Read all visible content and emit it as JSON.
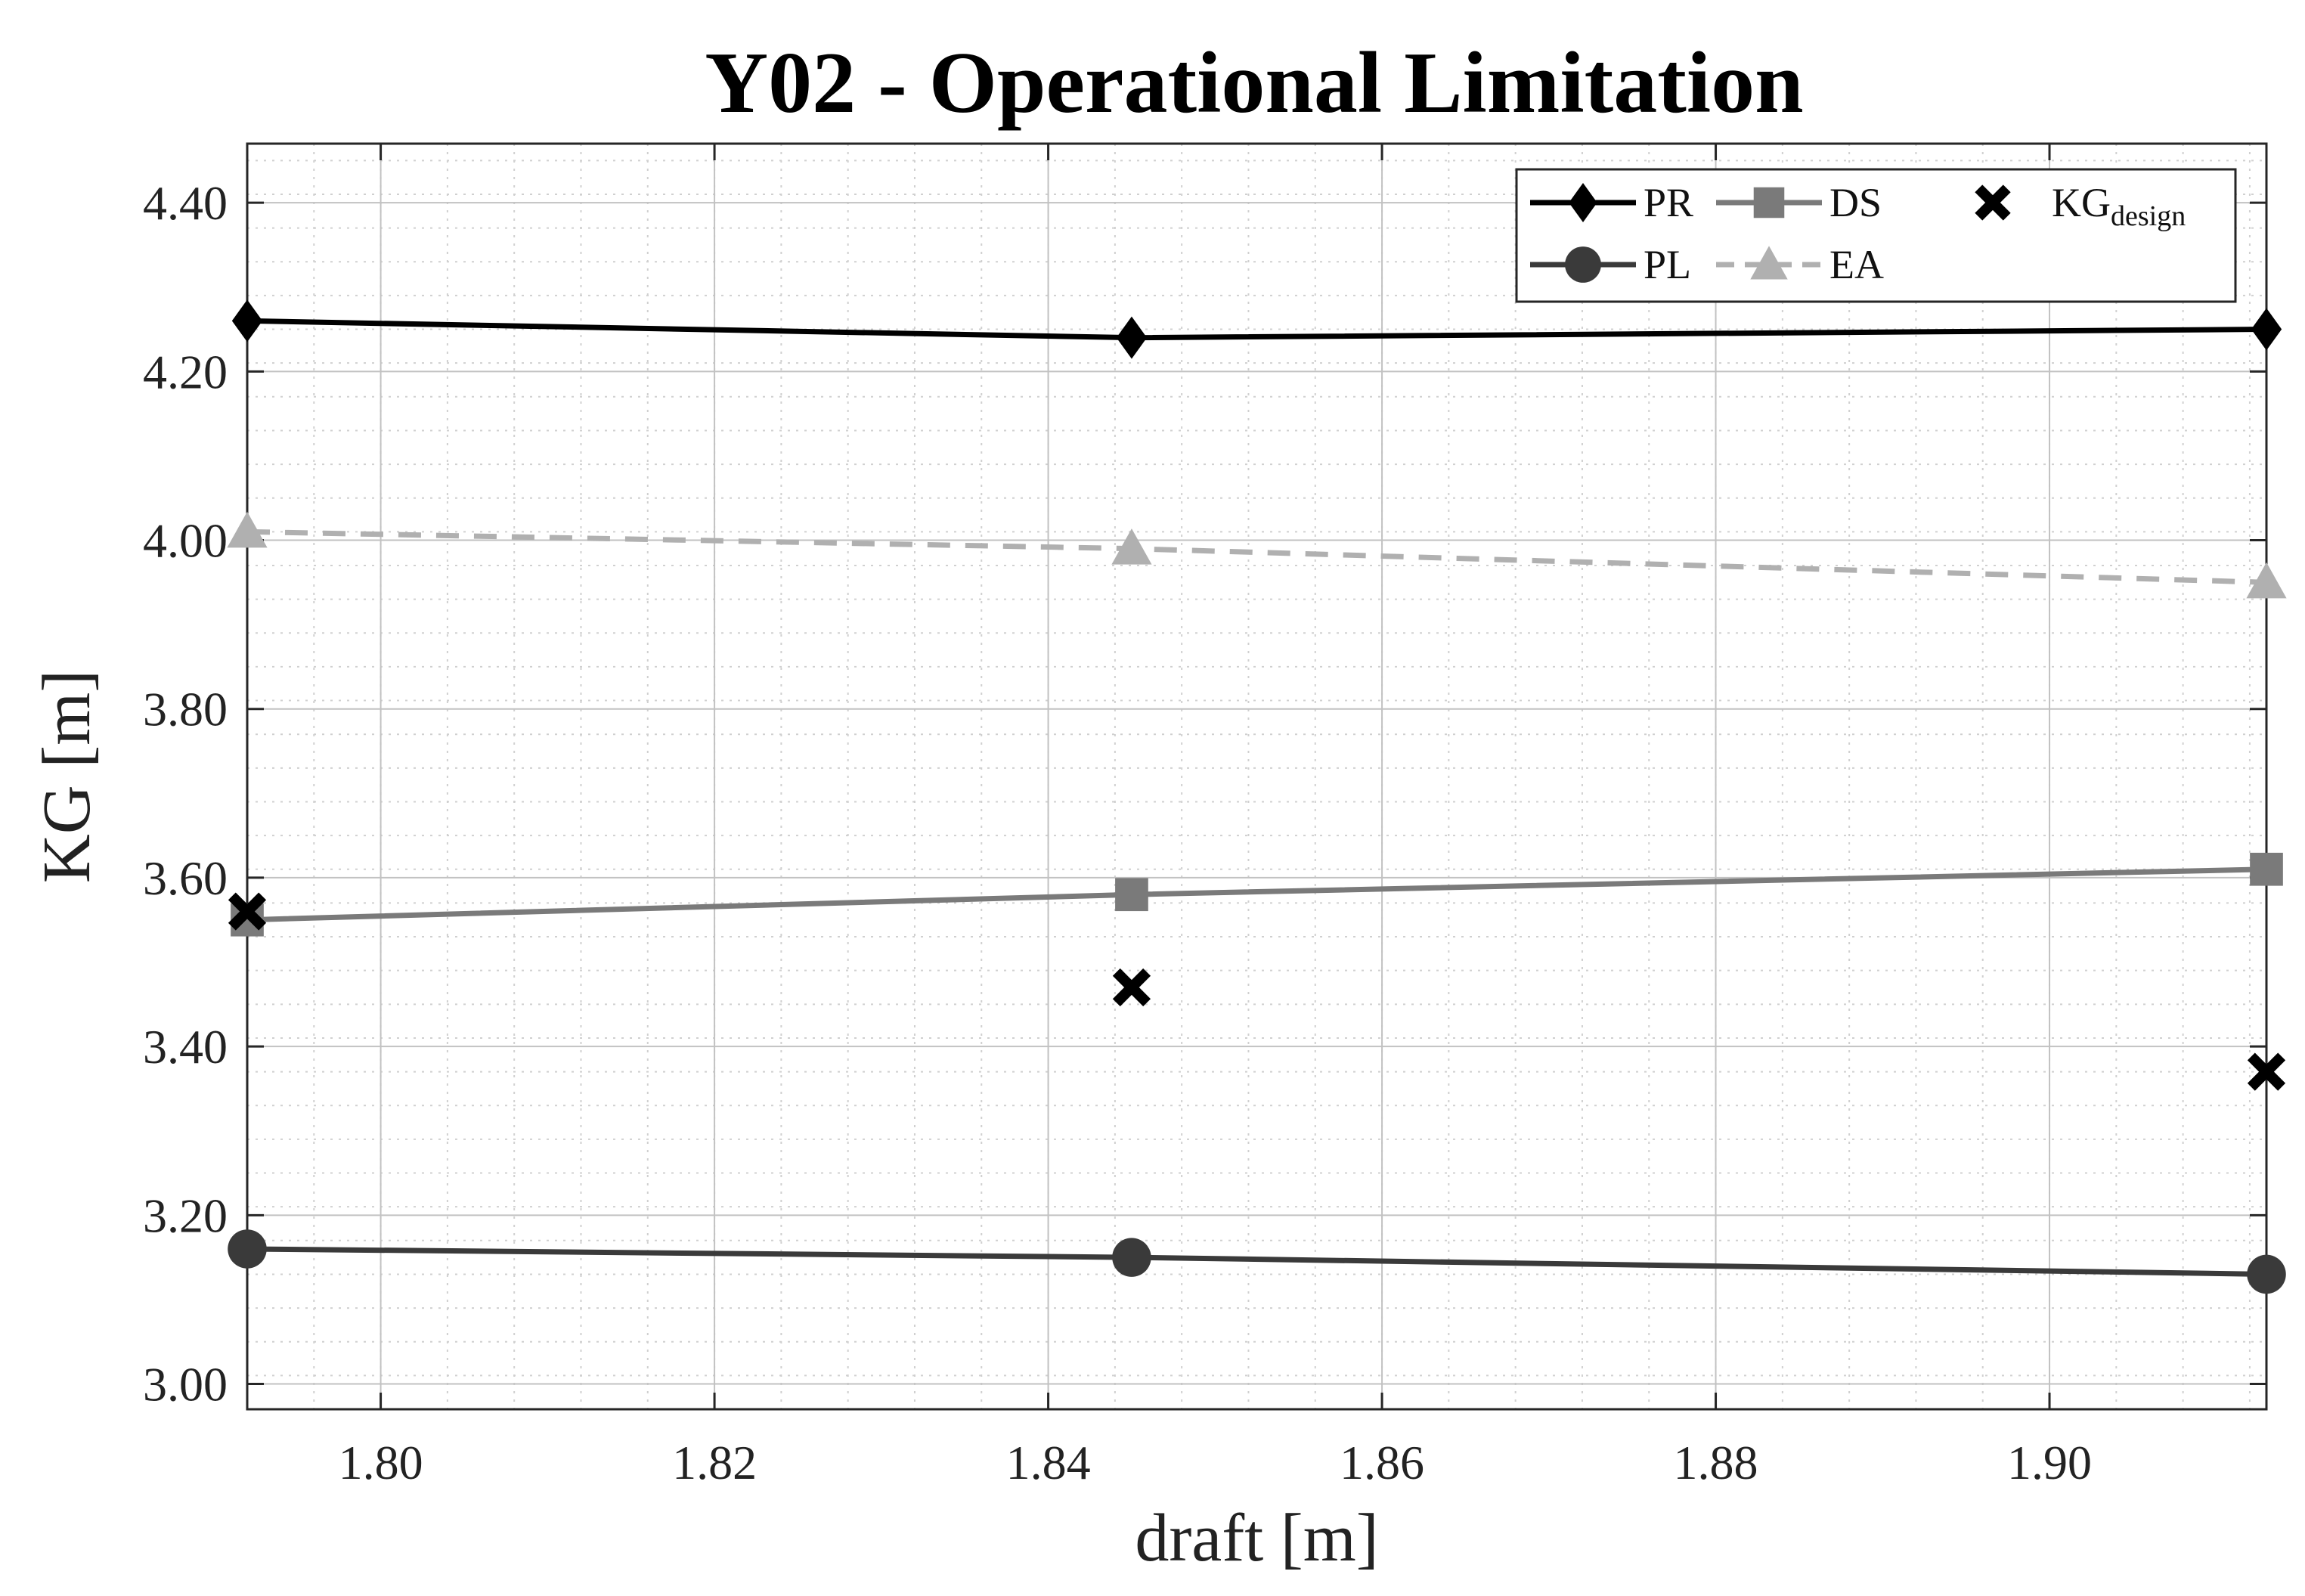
{
  "chart_data": {
    "type": "line",
    "title": "Y02 - Operational Limitation",
    "xlabel": "draft [m]",
    "ylabel": "KG [m]",
    "xlim": [
      1.792,
      1.913
    ],
    "ylim": [
      2.97,
      4.47
    ],
    "xticks": [
      1.8,
      1.82,
      1.84,
      1.86,
      1.88,
      1.9
    ],
    "xtick_labels": [
      "1.80",
      "1.82",
      "1.84",
      "1.86",
      "1.88",
      "1.90"
    ],
    "yticks": [
      3.0,
      3.2,
      3.4,
      3.6,
      3.8,
      4.0,
      4.2,
      4.4
    ],
    "ytick_labels": [
      "3.00",
      "3.20",
      "3.40",
      "3.60",
      "3.80",
      "4.00",
      "4.20",
      "4.40"
    ],
    "grid": true,
    "legend_position": "top-right",
    "x": [
      1.792,
      1.845,
      1.913
    ],
    "series": [
      {
        "name": "PR",
        "label": "PR",
        "values": [
          4.26,
          4.24,
          4.25
        ],
        "color": "#000000",
        "marker": "diamond",
        "line": "solid"
      },
      {
        "name": "PL",
        "label": "PL",
        "values": [
          3.16,
          3.15,
          3.13
        ],
        "color": "#3a3a3a",
        "marker": "circle",
        "line": "solid"
      },
      {
        "name": "DS",
        "label": "DS",
        "values": [
          3.55,
          3.58,
          3.61
        ],
        "color": "#7a7a7a",
        "marker": "square",
        "line": "solid"
      },
      {
        "name": "EA",
        "label": "EA",
        "values": [
          4.01,
          3.99,
          3.95
        ],
        "color": "#b0b0b0",
        "marker": "triangle",
        "line": "dashed"
      },
      {
        "name": "KGdesign",
        "label": "KG",
        "label_sub": "design",
        "values": [
          3.56,
          3.47,
          3.37
        ],
        "color": "#000000",
        "marker": "x",
        "line": "none"
      }
    ]
  }
}
